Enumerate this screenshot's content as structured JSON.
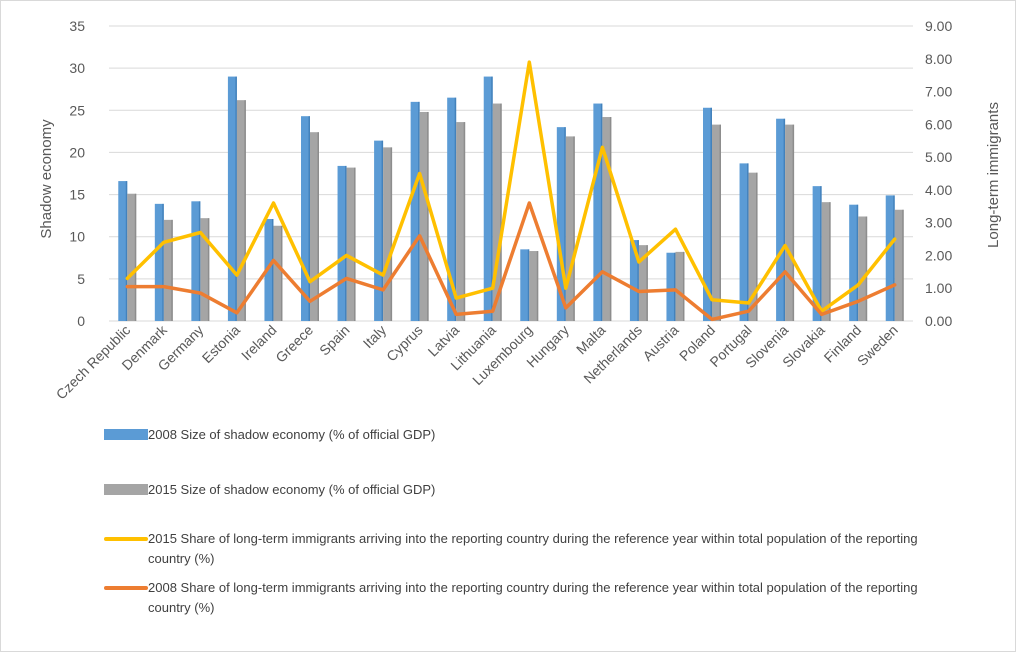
{
  "colors": {
    "bar2008": "#5B9BD5",
    "bar2015": "#A5A5A5",
    "line2015": "#FFC000",
    "line2008": "#ED7D31",
    "grid": "#d9d9d9",
    "text": "#595959"
  },
  "chart_data": {
    "type": "bar",
    "title": "",
    "ylabel": "Shadow economy",
    "y2label": "Long-term immigrants",
    "ylim": [
      0,
      35
    ],
    "y2lim": [
      0,
      9
    ],
    "yticks": [
      "0",
      "5",
      "10",
      "15",
      "20",
      "25",
      "30",
      "35"
    ],
    "y2ticks": [
      "0.00",
      "1.00",
      "2.00",
      "3.00",
      "4.00",
      "5.00",
      "6.00",
      "7.00",
      "8.00",
      "9.00"
    ],
    "grid": true,
    "legend_position": "bottom",
    "categories": [
      "Czech Republic",
      "Denmark",
      "Germany",
      "Estonia",
      "Ireland",
      "Greece",
      "Spain",
      "Italy",
      "Cyprus",
      "Latvia",
      "Lithuania",
      "Luxembourg",
      "Hungary",
      "Malta",
      "Netherlands",
      "Austria",
      "Poland",
      "Portugal",
      "Slovenia",
      "Slovakia",
      "Finland",
      "Sweden"
    ],
    "series": [
      {
        "name": "2008 Size of shadow economy (% of official GDP)",
        "kind": "bar",
        "axis": "left",
        "values": [
          16.6,
          13.9,
          14.2,
          29.0,
          12.1,
          24.3,
          18.4,
          21.4,
          26.0,
          26.5,
          29.0,
          8.5,
          23.0,
          25.8,
          9.6,
          8.1,
          25.3,
          18.7,
          24.0,
          16.0,
          13.8,
          14.9
        ]
      },
      {
        "name": "2015 Size of shadow economy (% of official GDP)",
        "kind": "bar",
        "axis": "left",
        "values": [
          15.1,
          12.0,
          12.2,
          26.2,
          11.3,
          22.4,
          18.2,
          20.6,
          24.8,
          23.6,
          25.8,
          8.3,
          21.9,
          24.2,
          9.0,
          8.2,
          23.3,
          17.6,
          23.3,
          14.1,
          12.4,
          13.2
        ]
      },
      {
        "name": "2015 Share of long-term immigrants arriving into the reporting country during the reference year within total population of the reporting country (%)",
        "kind": "line",
        "axis": "right",
        "values": [
          1.3,
          2.4,
          2.7,
          1.4,
          3.6,
          1.2,
          2.0,
          1.4,
          4.5,
          0.7,
          1.0,
          7.9,
          1.0,
          5.3,
          1.8,
          2.8,
          0.65,
          0.55,
          2.3,
          0.3,
          1.1,
          2.5
        ]
      },
      {
        "name": "2008 Share of long-term immigrants arriving into the reporting country during the reference year within total population of the reporting country (%)",
        "kind": "line",
        "axis": "right",
        "values": [
          1.05,
          1.05,
          0.85,
          0.25,
          1.85,
          0.6,
          1.3,
          0.95,
          2.6,
          0.2,
          0.3,
          3.6,
          0.4,
          1.5,
          0.9,
          0.95,
          0.05,
          0.3,
          1.5,
          0.2,
          0.6,
          1.1
        ]
      }
    ]
  },
  "legend": [
    {
      "key": "bar2008",
      "shape": "bar",
      "label": "2008 Size of shadow economy (% of official GDP)"
    },
    {
      "key": "bar2015",
      "shape": "bar",
      "label": "2015 Size of shadow economy (% of official GDP)"
    },
    {
      "key": "line2015",
      "shape": "line",
      "label": "2015 Share of long-term immigrants arriving into the reporting country during the reference year within total population of the reporting country (%)"
    },
    {
      "key": "line2008",
      "shape": "line",
      "label": "2008 Share of long-term immigrants arriving into the reporting country during the reference year within total population of the reporting country (%)"
    }
  ]
}
